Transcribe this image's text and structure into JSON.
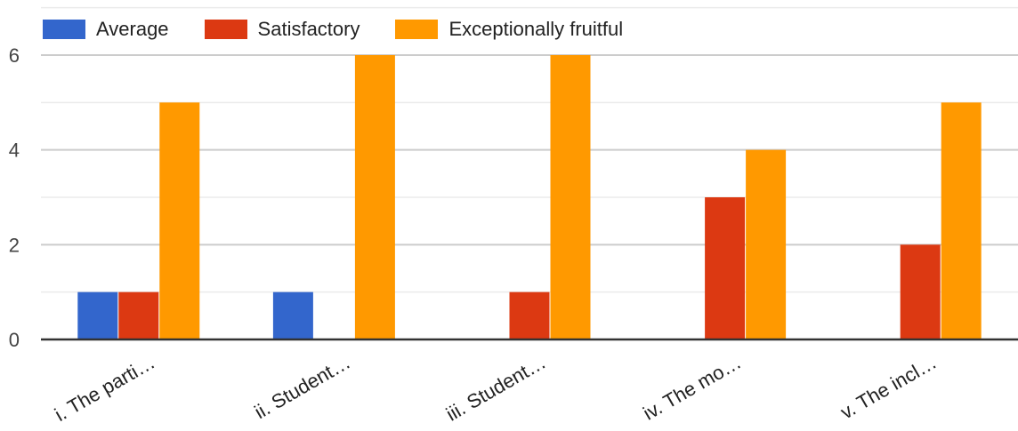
{
  "chart_data": {
    "type": "bar",
    "title": "",
    "xlabel": "",
    "ylabel": "",
    "categories": [
      "i. The parti…",
      "ii. Student…",
      "iii. Student…",
      "iv. The mo…",
      "v. The incl…"
    ],
    "series": [
      {
        "name": "Average",
        "color": "#3366cc",
        "values": [
          1,
          1,
          0,
          0,
          0
        ]
      },
      {
        "name": "Satisfactory",
        "color": "#dc3912",
        "values": [
          1,
          0,
          1,
          3,
          2
        ]
      },
      {
        "name": "Exceptionally fruitful",
        "color": "#ff9900",
        "values": [
          5,
          6,
          6,
          4,
          5
        ]
      }
    ],
    "ylim": [
      0,
      6
    ],
    "yticks": [
      0,
      2,
      4,
      6
    ],
    "grid": true,
    "legend": "top-left"
  }
}
